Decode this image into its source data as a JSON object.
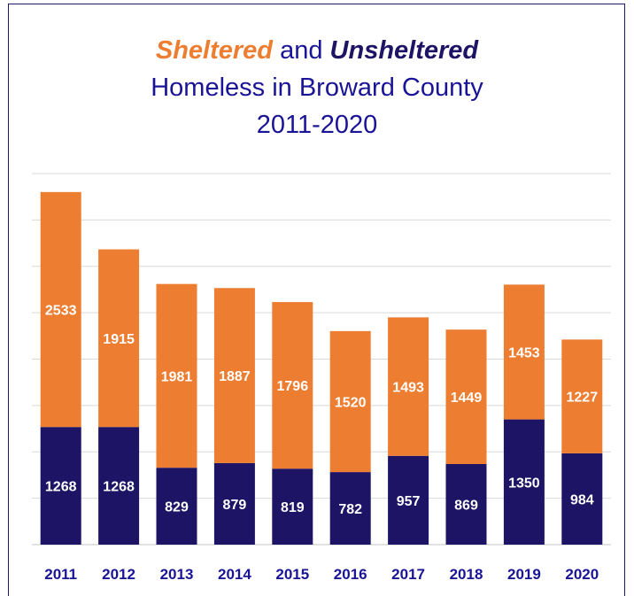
{
  "title": {
    "part1": "Sheltered",
    "part2": " and ",
    "part3": "Unsheltered",
    "line2": "Homeless in Broward County",
    "line3": "2011-2020"
  },
  "colors": {
    "sheltered": "#ed7d31",
    "unsheltered": "#1d1466",
    "title": "#1a1496",
    "grid": "#d9d9d9"
  },
  "chart_data": {
    "type": "bar",
    "stacked": true,
    "categories": [
      "2011",
      "2012",
      "2013",
      "2014",
      "2015",
      "2016",
      "2017",
      "2018",
      "2019",
      "2020"
    ],
    "series": [
      {
        "name": "Unsheltered",
        "values": [
          1268,
          1268,
          829,
          879,
          819,
          782,
          957,
          869,
          1350,
          984
        ]
      },
      {
        "name": "Sheltered",
        "values": [
          2533,
          1915,
          1981,
          1887,
          1796,
          1520,
          1493,
          1449,
          1453,
          1227
        ]
      }
    ],
    "title": "Sheltered and Unsheltered Homeless in Broward County 2011-2020",
    "xlabel": "",
    "ylabel": "",
    "ylim": [
      0,
      4000
    ],
    "grid": true,
    "legend": "none"
  }
}
